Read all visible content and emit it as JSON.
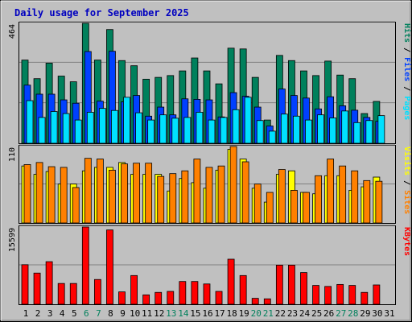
{
  "chart_data": {
    "type": "bar",
    "title": "Daily usage for September 2025",
    "categories": [
      "1",
      "2",
      "3",
      "4",
      "5",
      "6",
      "7",
      "8",
      "9",
      "10",
      "11",
      "12",
      "13",
      "14",
      "15",
      "16",
      "17",
      "18",
      "19",
      "20",
      "21",
      "22",
      "23",
      "24",
      "25",
      "26",
      "27",
      "28",
      "29",
      "30",
      "31"
    ],
    "weekend_days": [
      "6",
      "7",
      "13",
      "14",
      "20",
      "21",
      "27",
      "28"
    ],
    "panels": [
      {
        "id": "hits",
        "ymax_label": "464",
        "ylim": [
          0,
          464
        ],
        "axis_label_parts": [
          "Pages",
          " / ",
          "Files",
          " / ",
          "Hits"
        ],
        "series": [
          {
            "name": "Hits",
            "color": "#00805c",
            "values": [
              322,
              250,
              310,
              260,
              238,
              464,
              322,
              440,
              320,
              300,
              248,
              255,
              262,
              280,
              330,
              280,
              230,
              368,
              365,
              255,
              90,
              340,
              320,
              280,
              262,
              318,
              264,
              250,
              115,
              162,
              0
            ]
          },
          {
            "name": "Files",
            "color": "#0040ff",
            "values": [
              225,
              190,
              190,
              168,
              155,
              355,
              163,
              356,
              160,
              185,
              105,
              140,
              110,
              172,
              170,
              168,
              102,
              196,
              182,
              140,
              67,
              210,
              185,
              175,
              133,
              180,
              145,
              128,
              100,
              85,
              0
            ]
          },
          {
            "name": "Pages",
            "color": "#00e0ff",
            "values": [
              165,
              100,
              123,
              115,
              90,
              120,
              135,
              127,
              178,
              118,
              90,
              110,
              97,
              100,
              120,
              90,
              100,
              130,
              178,
              88,
              47,
              113,
              105,
              90,
              110,
              98,
              125,
              80,
              88,
              107,
              0
            ]
          }
        ]
      },
      {
        "id": "visits",
        "ymax_label": "110",
        "ylim": [
          0,
          110
        ],
        "axis_label_parts": [
          "Sites",
          " / ",
          "Visits"
        ],
        "series": [
          {
            "name": "Visits",
            "color": "#ffff00",
            "values": [
              82,
              70,
              74,
              56,
              56,
              75,
              80,
              80,
              87,
              70,
              70,
              70,
              46,
              64,
              58,
              50,
              76,
              106,
              92,
              50,
              30,
              70,
              75,
              44,
              42,
              68,
              68,
              47,
              52,
              66,
              0
            ]
          },
          {
            "name": "Sites",
            "color": "#ff8000",
            "values": [
              84,
              87,
              81,
              80,
              51,
              93,
              92,
              76,
              85,
              86,
              86,
              67,
              71,
              75,
              92,
              80,
              82,
              110,
              88,
              56,
              44,
              77,
              47,
              44,
              68,
              92,
              82,
              75,
              61,
              60,
              0
            ]
          }
        ]
      },
      {
        "id": "kbytes",
        "ymax_label": "15599",
        "ylim": [
          0,
          15599
        ],
        "axis_label_parts": [
          "KBytes"
        ],
        "series": [
          {
            "name": "KBytes",
            "color": "#ff0000",
            "values": [
              7990,
              6300,
              8600,
              4200,
              4200,
              15599,
              5000,
              15000,
              2500,
              5800,
              1900,
              2400,
              2600,
              4600,
              4600,
              4100,
              2600,
              9100,
              5800,
              1200,
              1100,
              7900,
              7900,
              6400,
              3800,
              3600,
              4000,
              3800,
              2400,
              3900,
              0
            ]
          }
        ]
      }
    ]
  }
}
